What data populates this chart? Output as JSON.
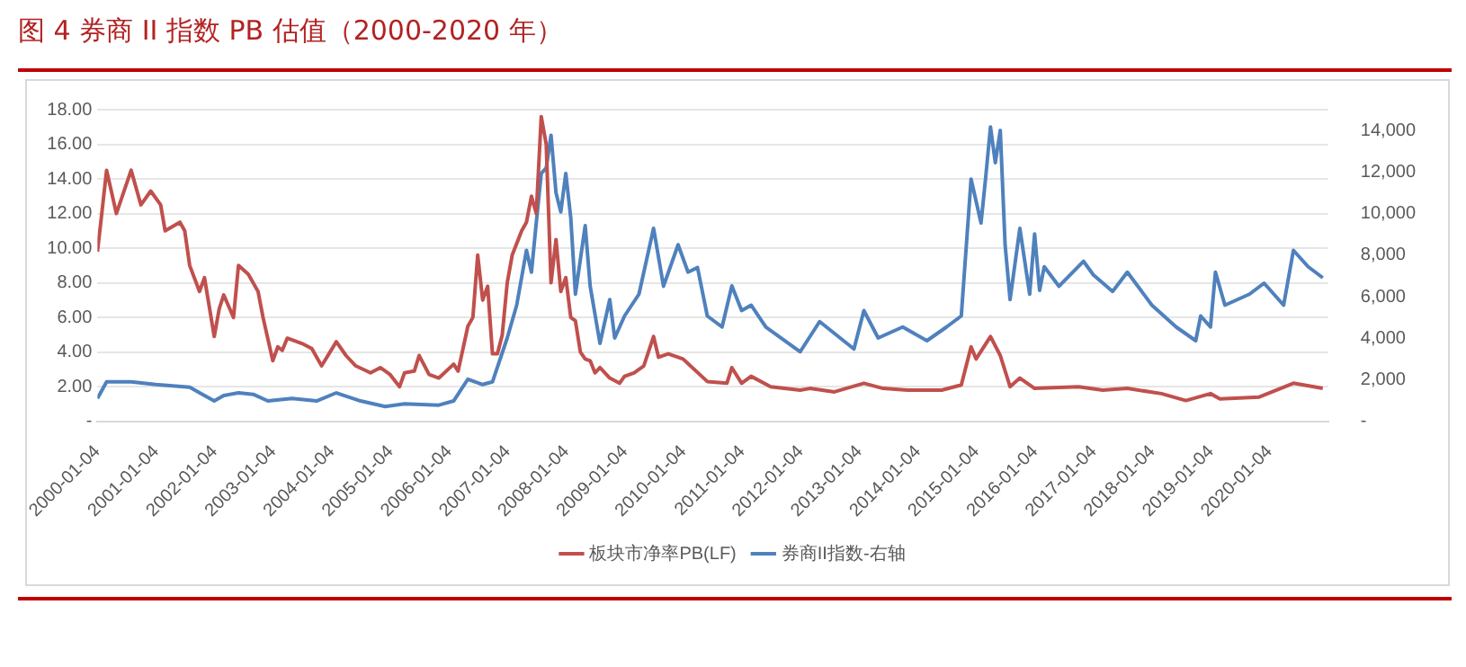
{
  "chart_data": {
    "type": "line",
    "title": "图 4  券商 II 指数 PB 估值（2000-2020 年）",
    "xlim": [
      "2000-01-04",
      "2021-01-04"
    ],
    "xticks": [
      "2000-01-04",
      "2001-01-04",
      "2002-01-04",
      "2003-01-04",
      "2004-01-04",
      "2005-01-04",
      "2006-01-04",
      "2007-01-04",
      "2008-01-04",
      "2009-01-04",
      "2010-01-04",
      "2011-01-04",
      "2012-01-04",
      "2013-01-04",
      "2014-01-04",
      "2015-01-04",
      "2016-01-04",
      "2017-01-04",
      "2018-01-04",
      "2019-01-04",
      "2020-01-04"
    ],
    "ylim": [
      0,
      18
    ],
    "yticks": [
      {
        "value": 0,
        "label": "-"
      },
      {
        "value": 2,
        "label": "2.00"
      },
      {
        "value": 4,
        "label": "4.00"
      },
      {
        "value": 6,
        "label": "6.00"
      },
      {
        "value": 8,
        "label": "8.00"
      },
      {
        "value": 10,
        "label": "10.00"
      },
      {
        "value": 12,
        "label": "12.00"
      },
      {
        "value": 14,
        "label": "14.00"
      },
      {
        "value": 16,
        "label": "16.00"
      },
      {
        "value": 18,
        "label": "18.00"
      }
    ],
    "y2lim": [
      0,
      15000
    ],
    "y2ticks": [
      {
        "value": 0,
        "label": "-"
      },
      {
        "value": 2000,
        "label": "2,000"
      },
      {
        "value": 4000,
        "label": "4,000"
      },
      {
        "value": 6000,
        "label": "6,000"
      },
      {
        "value": 8000,
        "label": "8,000"
      },
      {
        "value": 10000,
        "label": "10,000"
      },
      {
        "value": 12000,
        "label": "12,000"
      },
      {
        "value": 14000,
        "label": "14,000"
      }
    ],
    "grid": "y",
    "legend": "bottom",
    "marker": "none",
    "series": [
      {
        "name": "板块市净率PB(LF)",
        "color": "#c0504d",
        "x": [
          "2000-01-04",
          "2000-01-25",
          "2000-03",
          "2000-05",
          "2000-08",
          "2000-10",
          "2000-12",
          "2001-02",
          "2001-03",
          "2001-06",
          "2001-07",
          "2001-08",
          "2001-10",
          "2001-11",
          "2002-01",
          "2002-02",
          "2002-03",
          "2002-05",
          "2002-06",
          "2002-08",
          "2002-10",
          "2002-11",
          "2003-01",
          "2003-02",
          "2003-03",
          "2003-04",
          "2003-07",
          "2003-09",
          "2003-11",
          "2004-02",
          "2004-04",
          "2004-06",
          "2004-09",
          "2004-11",
          "2005-01",
          "2005-03",
          "2005-04",
          "2005-06",
          "2005-07",
          "2005-09",
          "2005-11",
          "2006-02",
          "2006-03",
          "2006-05",
          "2006-06",
          "2006-07",
          "2006-08",
          "2006-09",
          "2006-10",
          "2006-11",
          "2006-12",
          "2007-01",
          "2007-02",
          "2007-04",
          "2007-05",
          "2007-06",
          "2007-07",
          "2007-08",
          "2007-09",
          "2007-10",
          "2007-11",
          "2007-12",
          "2008-01",
          "2008-02",
          "2008-03",
          "2008-04",
          "2008-05",
          "2008-06",
          "2008-07",
          "2008-08",
          "2008-10",
          "2008-12",
          "2009-01",
          "2009-03",
          "2009-05",
          "2009-07",
          "2009-08",
          "2009-10",
          "2010-01",
          "2010-06",
          "2010-10",
          "2010-11",
          "2011-01",
          "2011-03",
          "2011-07",
          "2012-01",
          "2012-03",
          "2012-08",
          "2013-02",
          "2013-06",
          "2013-11",
          "2014-06",
          "2014-10",
          "2014-12",
          "2015-01",
          "2015-04",
          "2015-06",
          "2015-08",
          "2015-10",
          "2016-01",
          "2016-10",
          "2017-03",
          "2017-08",
          "2018-03",
          "2018-08",
          "2019-01",
          "2019-03",
          "2019-11",
          "2020-06",
          "2020-12"
        ],
        "values": [
          9.8,
          11.5,
          14.5,
          12.0,
          14.5,
          12.5,
          13.3,
          12.5,
          11.0,
          11.5,
          11.0,
          9.0,
          7.5,
          8.3,
          4.9,
          6.5,
          7.3,
          6.0,
          9.0,
          8.5,
          7.5,
          6.0,
          3.5,
          4.3,
          4.1,
          4.8,
          4.5,
          4.2,
          3.2,
          4.6,
          3.8,
          3.2,
          2.8,
          3.1,
          2.7,
          2.0,
          2.8,
          2.9,
          3.8,
          2.7,
          2.5,
          3.3,
          2.9,
          5.5,
          6.0,
          9.6,
          7.0,
          7.8,
          3.9,
          3.9,
          5.0,
          8.0,
          9.6,
          11.0,
          11.5,
          13.0,
          12.0,
          17.6,
          16.0,
          8.0,
          10.5,
          7.5,
          8.3,
          6.0,
          5.8,
          4.0,
          3.6,
          3.5,
          2.8,
          3.1,
          2.5,
          2.2,
          2.6,
          2.8,
          3.2,
          4.9,
          3.7,
          3.9,
          3.6,
          2.3,
          2.2,
          3.1,
          2.2,
          2.6,
          2.0,
          1.8,
          1.9,
          1.7,
          2.2,
          1.9,
          1.8,
          1.8,
          2.1,
          4.3,
          3.6,
          4.9,
          3.8,
          2.0,
          2.5,
          1.9,
          2.0,
          1.8,
          1.9,
          1.6,
          1.2,
          1.6,
          1.3,
          1.4,
          2.2,
          1.9
        ]
      },
      {
        "name": "券商II指数-右轴",
        "color": "#4f81bd",
        "axis": "y2",
        "x": [
          "2000-01-04",
          "2000-03",
          "2000-08",
          "2001-01",
          "2001-08",
          "2001-11",
          "2002-01",
          "2002-03",
          "2002-06",
          "2002-09",
          "2002-12",
          "2003-05",
          "2003-10",
          "2004-02",
          "2004-07",
          "2004-12",
          "2005-04",
          "2005-11",
          "2006-02",
          "2006-05",
          "2006-08",
          "2006-10",
          "2007-01",
          "2007-03",
          "2007-05",
          "2007-06",
          "2007-07",
          "2007-08",
          "2007-09",
          "2007-10",
          "2007-11",
          "2007-12",
          "2008-01",
          "2008-02",
          "2008-03",
          "2008-05",
          "2008-06",
          "2008-08",
          "2008-10",
          "2008-11",
          "2009-01",
          "2009-04",
          "2009-07",
          "2009-09",
          "2009-12",
          "2010-02",
          "2010-04",
          "2010-06",
          "2010-09",
          "2010-11",
          "2011-01",
          "2011-03",
          "2011-06",
          "2012-01",
          "2012-05",
          "2012-12",
          "2013-02",
          "2013-05",
          "2013-10",
          "2014-03",
          "2014-07",
          "2014-10",
          "2014-12",
          "2015-02",
          "2015-03",
          "2015-04",
          "2015-05",
          "2015-06",
          "2015-07",
          "2015-08",
          "2015-10",
          "2015-12",
          "2016-01",
          "2016-02",
          "2016-03",
          "2016-06",
          "2016-11",
          "2017-01",
          "2017-05",
          "2017-08",
          "2018-01",
          "2018-06",
          "2018-10",
          "2018-11",
          "2019-01",
          "2019-02",
          "2019-04",
          "2019-09",
          "2019-12",
          "2020-04",
          "2020-06",
          "2020-09",
          "2020-12"
        ],
        "values": [
          1100,
          1900,
          1900,
          1770,
          1640,
          1240,
          980,
          1240,
          1370,
          1300,
          980,
          1100,
          980,
          1370,
          980,
          710,
          840,
          780,
          980,
          2030,
          1770,
          1900,
          4010,
          5590,
          8230,
          7180,
          9550,
          11930,
          12190,
          13770,
          11000,
          10080,
          11930,
          9800,
          6120,
          9420,
          6500,
          3750,
          5860,
          4010,
          5070,
          6120,
          9290,
          6500,
          8500,
          7180,
          7400,
          5070,
          4540,
          6520,
          5330,
          5590,
          4540,
          3350,
          4800,
          3480,
          5330,
          4010,
          4540,
          3880,
          4540,
          5070,
          11660,
          9550,
          11660,
          14170,
          12450,
          14000,
          8500,
          5860,
          9290,
          6120,
          9020,
          6300,
          7440,
          6500,
          7700,
          7050,
          6250,
          7180,
          5590,
          4540,
          3880,
          5070,
          4540,
          7180,
          5590,
          6120,
          6650,
          5590,
          8230,
          7440,
          6910
        ]
      }
    ]
  }
}
